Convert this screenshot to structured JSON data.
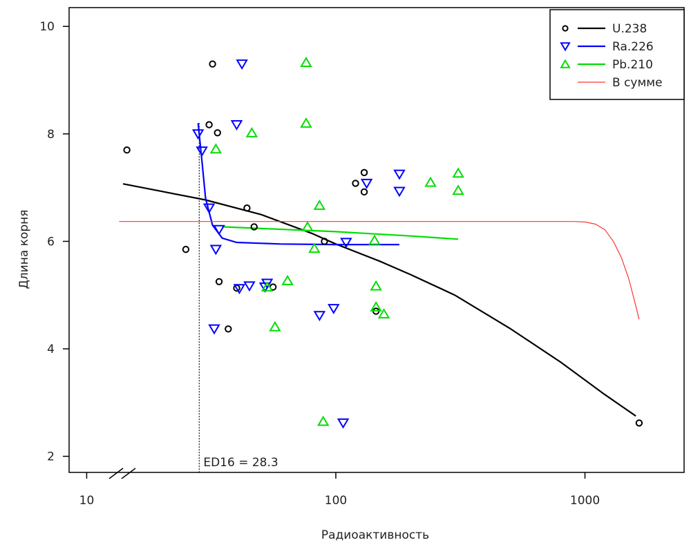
{
  "chart_data": {
    "type": "scatter",
    "title": "",
    "xlabel": "Радиоактивность",
    "ylabel": "Длина корня",
    "x_scale": "log",
    "xlim": [
      8.5,
      2500
    ],
    "ylim": [
      1.7,
      10.35
    ],
    "x_ticks": [
      10,
      100,
      1000
    ],
    "x_tick_labels": [
      "10",
      "100",
      "1000"
    ],
    "y_ticks": [
      2,
      4,
      6,
      8,
      10
    ],
    "y_tick_labels": [
      "2",
      "4",
      "6",
      "8",
      "10"
    ],
    "axis_break": true,
    "grid": false,
    "legend_position": "top-right",
    "legend": [
      {
        "label": "U.238",
        "marker": "circle",
        "color": "#000000"
      },
      {
        "label": "Ra.226",
        "marker": "triangle-down",
        "color": "#0000ff"
      },
      {
        "label": "Pb.210",
        "marker": "triangle-up",
        "color": "#00dd00"
      },
      {
        "label": "В сумме",
        "marker": "none",
        "color": "#ff3333"
      }
    ],
    "series": [
      {
        "name": "U.238",
        "color": "#000000",
        "marker": "circle",
        "points": [
          [
            14.5,
            7.7
          ],
          [
            25,
            5.85
          ],
          [
            31,
            8.17
          ],
          [
            32,
            9.3
          ],
          [
            33.5,
            8.02
          ],
          [
            34,
            5.25
          ],
          [
            37,
            4.37
          ],
          [
            40,
            5.13
          ],
          [
            44,
            6.62
          ],
          [
            47,
            6.27
          ],
          [
            56,
            5.15
          ],
          [
            90,
            6.0
          ],
          [
            120,
            7.08
          ],
          [
            130,
            7.28
          ],
          [
            130,
            6.92
          ],
          [
            145,
            4.7
          ],
          [
            1650,
            2.62
          ]
        ],
        "fit": [
          [
            14,
            7.07
          ],
          [
            20,
            6.93
          ],
          [
            30,
            6.77
          ],
          [
            50,
            6.5
          ],
          [
            80,
            6.15
          ],
          [
            100,
            5.95
          ],
          [
            150,
            5.63
          ],
          [
            200,
            5.38
          ],
          [
            300,
            5.0
          ],
          [
            500,
            4.38
          ],
          [
            800,
            3.75
          ],
          [
            1200,
            3.15
          ],
          [
            1600,
            2.75
          ]
        ]
      },
      {
        "name": "Ra.226",
        "color": "#0000ff",
        "marker": "triangle-down",
        "points": [
          [
            28,
            8.0
          ],
          [
            29,
            7.68
          ],
          [
            31,
            6.62
          ],
          [
            32.5,
            4.37
          ],
          [
            33,
            5.85
          ],
          [
            34,
            6.22
          ],
          [
            40,
            8.17
          ],
          [
            41,
            5.12
          ],
          [
            42,
            9.3
          ],
          [
            45,
            5.17
          ],
          [
            52,
            5.15
          ],
          [
            53,
            5.22
          ],
          [
            86,
            4.62
          ],
          [
            98,
            4.75
          ],
          [
            107,
            2.62
          ],
          [
            110,
            5.98
          ],
          [
            133,
            7.08
          ],
          [
            180,
            6.93
          ],
          [
            180,
            7.25
          ]
        ],
        "fit": [
          [
            28,
            8.2
          ],
          [
            29,
            7.5
          ],
          [
            30,
            6.8
          ],
          [
            32,
            6.3
          ],
          [
            35,
            6.06
          ],
          [
            40,
            5.98
          ],
          [
            60,
            5.95
          ],
          [
            100,
            5.94
          ],
          [
            180,
            5.94
          ]
        ]
      },
      {
        "name": "Pb.210",
        "color": "#00dd00",
        "marker": "triangle-up",
        "points": [
          [
            33,
            7.72
          ],
          [
            46,
            8.02
          ],
          [
            53,
            5.15
          ],
          [
            57,
            4.41
          ],
          [
            64,
            5.27
          ],
          [
            76,
            9.33
          ],
          [
            76,
            8.2
          ],
          [
            77,
            6.27
          ],
          [
            82,
            5.87
          ],
          [
            86,
            6.67
          ],
          [
            89,
            2.65
          ],
          [
            143,
            6.02
          ],
          [
            145,
            5.17
          ],
          [
            145,
            4.78
          ],
          [
            156,
            4.65
          ],
          [
            240,
            7.1
          ],
          [
            310,
            7.27
          ],
          [
            310,
            6.95
          ]
        ],
        "fit": [
          [
            35,
            6.27
          ],
          [
            100,
            6.18
          ],
          [
            200,
            6.1
          ],
          [
            310,
            6.04
          ]
        ]
      },
      {
        "name": "В сумме",
        "color": "#ff3333",
        "marker": "none",
        "points": [],
        "fit": [
          [
            13.5,
            6.37
          ],
          [
            100,
            6.37
          ],
          [
            500,
            6.37
          ],
          [
            900,
            6.37
          ],
          [
            1000,
            6.36
          ],
          [
            1100,
            6.32
          ],
          [
            1200,
            6.22
          ],
          [
            1300,
            6.0
          ],
          [
            1400,
            5.7
          ],
          [
            1500,
            5.3
          ],
          [
            1600,
            4.8
          ],
          [
            1650,
            4.55
          ]
        ]
      }
    ],
    "annotations": [
      {
        "text": "ED16 = 28.3",
        "x": 28.3,
        "y": 1.75,
        "style": "dotted-vertical-line"
      }
    ]
  }
}
